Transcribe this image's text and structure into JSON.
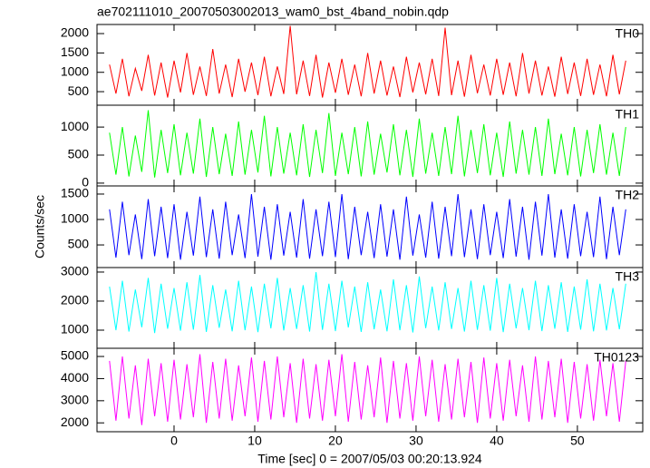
{
  "chart_data": {
    "type": "line",
    "title": "ae702111010_20070503002013_wam0_bst_4band_nobin.qdp",
    "xlabel": "Time [sec] 0 = 2007/05/03 00:20:13.924",
    "ylabel": "Counts/sec",
    "xlim": [
      -9.55,
      58.1
    ],
    "xticks": [
      0,
      10,
      20,
      30,
      40,
      50
    ],
    "x": [
      -8,
      -7.2,
      -6.4,
      -5.6,
      -4.8,
      -4,
      -3.2,
      -2.4,
      -1.6,
      -0.8,
      0,
      0.8,
      1.6,
      2.4,
      3.2,
      4,
      4.8,
      5.6,
      6.4,
      7.2,
      8,
      8.8,
      9.6,
      10.4,
      11.2,
      12,
      12.8,
      13.6,
      14.4,
      15.2,
      16,
      16.8,
      17.6,
      18.4,
      19.2,
      20,
      20.8,
      21.6,
      22.4,
      23.2,
      24,
      24.8,
      25.6,
      26.4,
      27.2,
      28,
      28.8,
      29.6,
      30.4,
      31.2,
      32,
      32.8,
      33.6,
      34.4,
      35.2,
      36,
      36.8,
      37.6,
      38.4,
      39.2,
      40,
      40.8,
      41.6,
      42.4,
      43.2,
      44,
      44.8,
      45.6,
      46.4,
      47.2,
      48,
      48.8,
      49.6,
      50.4,
      51.2,
      52,
      52.8,
      53.6,
      54.4,
      55.2,
      56
    ],
    "series": [
      {
        "name": "TH0",
        "color": "#ff0000",
        "ylim": [
          150,
          2235
        ],
        "yticks": [
          500,
          1000,
          1500,
          2000
        ],
        "values": [
          1200,
          450,
          1350,
          380,
          1100,
          520,
          1450,
          400,
          1250,
          350,
          1300,
          480,
          1500,
          420,
          1150,
          390,
          1600,
          450,
          1200,
          360,
          1350,
          500,
          1250,
          410,
          1400,
          380,
          1150,
          440,
          2200,
          430,
          1300,
          390,
          1450,
          350,
          1250,
          470,
          1350,
          420,
          1200,
          380,
          1500,
          450,
          1300,
          400,
          1150,
          360,
          1400,
          480,
          1250,
          430,
          1350,
          390,
          2150,
          410,
          1300,
          370,
          1450,
          460,
          1200,
          400,
          1350,
          420,
          1250,
          380,
          1500,
          450,
          1300,
          400,
          1150,
          370,
          1400,
          440,
          1250,
          390,
          1350,
          420,
          1200,
          380,
          1450,
          430,
          1300
        ]
      },
      {
        "name": "TH1",
        "color": "#00ff00",
        "ylim": [
          -50,
          1390
        ],
        "yticks": [
          0,
          500,
          1000
        ],
        "values": [
          900,
          150,
          1000,
          120,
          850,
          200,
          1300,
          100,
          950,
          180,
          1050,
          140,
          900,
          170,
          1150,
          110,
          1000,
          160,
          880,
          130,
          1100,
          150,
          950,
          190,
          1200,
          120,
          1000,
          170,
          900,
          140,
          1050,
          110,
          950,
          180,
          1250,
          130,
          900,
          160,
          1000,
          120,
          1100,
          150,
          880,
          190,
          1050,
          140,
          950,
          110,
          1150,
          170,
          900,
          130,
          1000,
          160,
          1200,
          120,
          950,
          180,
          1050,
          140,
          900,
          110,
          1100,
          170,
          950,
          150,
          1000,
          130,
          1150,
          160,
          880,
          140,
          1000,
          120,
          950,
          180,
          1050,
          150,
          900,
          130,
          1000
        ]
      },
      {
        "name": "TH2",
        "color": "#0000ff",
        "ylim": [
          55,
          1660
        ],
        "yticks": [
          500,
          1000,
          1500
        ],
        "values": [
          1200,
          250,
          1350,
          300,
          1100,
          220,
          1400,
          280,
          1250,
          240,
          1300,
          210,
          1150,
          290,
          1450,
          260,
          1200,
          230,
          1350,
          300,
          1100,
          240,
          1500,
          270,
          1250,
          210,
          1300,
          290,
          1150,
          250,
          1400,
          230,
          1200,
          280,
          1350,
          260,
          1500,
          220,
          1250,
          300,
          1150,
          240,
          1300,
          270,
          1200,
          210,
          1450,
          290,
          1100,
          250,
          1350,
          230,
          1250,
          280,
          1500,
          260,
          1200,
          220,
          1300,
          300,
          1150,
          240,
          1400,
          270,
          1250,
          210,
          1350,
          290,
          1500,
          250,
          1200,
          230,
          1300,
          280,
          1150,
          260,
          1450,
          220,
          1250,
          300,
          1200
        ]
      },
      {
        "name": "TH3",
        "color": "#00ffff",
        "ylim": [
          375,
          3155
        ],
        "yticks": [
          1000,
          2000,
          3000
        ],
        "values": [
          2500,
          1000,
          2700,
          950,
          2400,
          1100,
          2800,
          900,
          2600,
          1050,
          2450,
          980,
          2650,
          1020,
          2900,
          940,
          2550,
          1080,
          2400,
          960,
          2700,
          1000,
          2500,
          930,
          2600,
          1060,
          2800,
          990,
          2450,
          1040,
          2550,
          950,
          3000,
          1010,
          2600,
          970,
          2700,
          1090,
          2500,
          940,
          2650,
          1030,
          2400,
          960,
          2750,
          1000,
          2550,
          920,
          2850,
          1070,
          2500,
          990,
          2650,
          1040,
          2450,
          950,
          2700,
          1010,
          2550,
          980,
          2800,
          930,
          2600,
          1060,
          2450,
          1000,
          2700,
          970,
          2550,
          1050,
          2650,
          940,
          2500,
          1020,
          2750,
          960,
          2600,
          990,
          2450,
          1030,
          2600
        ]
      },
      {
        "name": "TH0123",
        "color": "#ff00ff",
        "ylim": [
          1600,
          5370
        ],
        "yticks": [
          2000,
          3000,
          4000,
          5000
        ],
        "values": [
          4800,
          2100,
          5000,
          2200,
          4600,
          1900,
          4900,
          2300,
          4700,
          2050,
          4850,
          2150,
          4650,
          2250,
          5100,
          2000,
          4750,
          2200,
          4900,
          2100,
          4600,
          2300,
          4950,
          2050,
          4800,
          2150,
          5000,
          2250,
          4700,
          2000,
          4900,
          2200,
          4650,
          2100,
          4850,
          2300,
          5100,
          2050,
          4750,
          2150,
          4600,
          2250,
          4950,
          2000,
          4800,
          2200,
          4700,
          2100,
          5000,
          2300,
          4850,
          2050,
          4650,
          2150,
          4900,
          2250,
          4750,
          2000,
          4950,
          2200,
          4700,
          2100,
          4850,
          2300,
          4600,
          2050,
          5000,
          2150,
          4800,
          2250,
          4900,
          2000,
          4750,
          2200,
          4650,
          2100,
          4850,
          2300,
          4700,
          2050,
          4800
        ]
      }
    ]
  }
}
